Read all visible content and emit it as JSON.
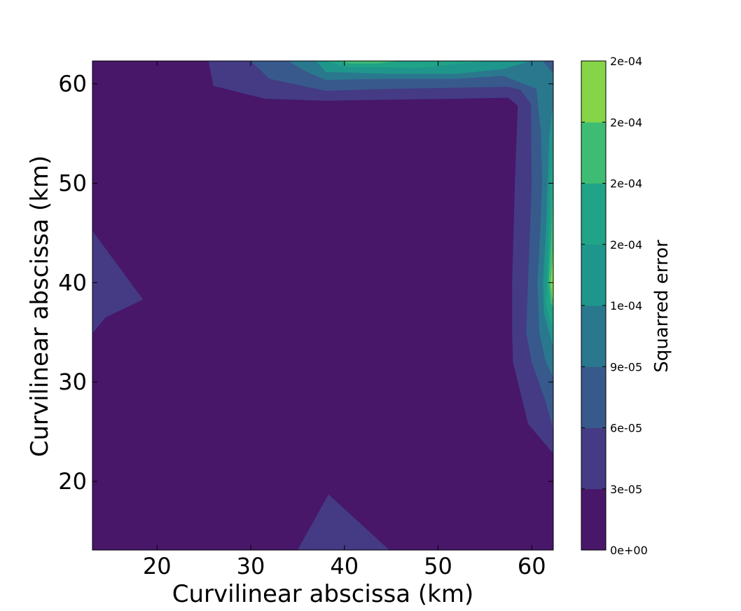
{
  "chart_data": {
    "type": "contour",
    "title": "",
    "xlabel": "Curvilinear abscissa (km)",
    "ylabel": "Curvilinear abscissa (km)",
    "xlim": [
      13.1,
      62.3
    ],
    "ylim": [
      13.1,
      62.3
    ],
    "xticks": [
      20,
      30,
      40,
      50,
      60
    ],
    "yticks": [
      20,
      30,
      40,
      50,
      60
    ],
    "colorbar": {
      "label": "Squarred error",
      "tick_labels": [
        "0e+00",
        "3e-05",
        "6e-05",
        "9e-05",
        "1e-04",
        "2e-04",
        "2e-04",
        "2e-04",
        "2e-04"
      ],
      "colors": [
        "#481769",
        "#443b84",
        "#38598c",
        "#2a788e",
        "#1f968b",
        "#20a386",
        "#3fbc73",
        "#86d549",
        "#dae319"
      ]
    },
    "grid": false,
    "regions": [
      {
        "level": 1,
        "points": [
          [
            25.5,
            62.3
          ],
          [
            26,
            59.8
          ],
          [
            31.5,
            58.5
          ],
          [
            38,
            58.3
          ],
          [
            45,
            58.4
          ],
          [
            52,
            58.5
          ],
          [
            57.5,
            58.6
          ],
          [
            58.5,
            57.8
          ],
          [
            58.2,
            50
          ],
          [
            57.9,
            40
          ],
          [
            57.9,
            35
          ],
          [
            58,
            32
          ],
          [
            59.6,
            25.8
          ],
          [
            62.3,
            22.8
          ],
          [
            62.3,
            62.3
          ]
        ]
      },
      {
        "level": 1,
        "points": [
          [
            13.1,
            45.2
          ],
          [
            18.5,
            38.3
          ],
          [
            14.5,
            36.5
          ],
          [
            13.1,
            34.9
          ]
        ]
      },
      {
        "level": 1,
        "points": [
          [
            35,
            13.1
          ],
          [
            38.3,
            18.7
          ],
          [
            44.8,
            13.1
          ]
        ]
      },
      {
        "level": 2,
        "points": [
          [
            30,
            62.3
          ],
          [
            32,
            60.5
          ],
          [
            38,
            59.3
          ],
          [
            45,
            59.5
          ],
          [
            52,
            59.6
          ],
          [
            57.5,
            59.7
          ],
          [
            58.8,
            59.4
          ],
          [
            59.9,
            58
          ],
          [
            60,
            50
          ],
          [
            59.6,
            40
          ],
          [
            59.4,
            35
          ],
          [
            60,
            32
          ],
          [
            61.5,
            28
          ],
          [
            62.3,
            25.2
          ],
          [
            62.3,
            62.3
          ]
        ]
      },
      {
        "level": 3,
        "points": [
          [
            34,
            62.3
          ],
          [
            36,
            61.2
          ],
          [
            38,
            60.4
          ],
          [
            45,
            60.5
          ],
          [
            52,
            60.5
          ],
          [
            57,
            60.8
          ],
          [
            60.5,
            59.5
          ],
          [
            61,
            55
          ],
          [
            61.1,
            50
          ],
          [
            60.9,
            45
          ],
          [
            60.6,
            40
          ],
          [
            60.8,
            35
          ],
          [
            61.5,
            32
          ],
          [
            62.3,
            30.5
          ],
          [
            62.3,
            62.3
          ]
        ]
      },
      {
        "level": 4,
        "points": [
          [
            37,
            62.3
          ],
          [
            38,
            61.2
          ],
          [
            45,
            61
          ],
          [
            52,
            61
          ],
          [
            57,
            61.5
          ],
          [
            59.9,
            62.3
          ],
          [
            62.3,
            62.3
          ],
          [
            62.3,
            58
          ],
          [
            61.9,
            55
          ],
          [
            61.7,
            50
          ],
          [
            61.5,
            45
          ],
          [
            61.2,
            40
          ],
          [
            61.3,
            37
          ],
          [
            62.3,
            33.5
          ],
          [
            62.3,
            62.3
          ]
        ]
      },
      {
        "level": 5,
        "points": [
          [
            38,
            62.3
          ],
          [
            40,
            61.7
          ],
          [
            48,
            61.6
          ],
          [
            55,
            62.3
          ]
        ]
      },
      {
        "level": 5,
        "points": [
          [
            62.3,
            54.5
          ],
          [
            62,
            50
          ],
          [
            61.8,
            44
          ],
          [
            61.6,
            40
          ],
          [
            61.5,
            38
          ],
          [
            62,
            36
          ],
          [
            62.3,
            35.5
          ]
        ]
      },
      {
        "level": 6,
        "points": [
          [
            39.5,
            62.3
          ],
          [
            40.5,
            62.05
          ],
          [
            43.5,
            62.05
          ],
          [
            46,
            62.3
          ]
        ]
      },
      {
        "level": 6,
        "points": [
          [
            62.3,
            50.5
          ],
          [
            62.1,
            45
          ],
          [
            61.9,
            42
          ],
          [
            61.8,
            40
          ],
          [
            62,
            38
          ],
          [
            62.3,
            37.5
          ]
        ]
      },
      {
        "level": 7,
        "points": [
          [
            62.3,
            44.2
          ],
          [
            62.2,
            42
          ],
          [
            62,
            40
          ],
          [
            62.2,
            38.5
          ],
          [
            62.3,
            38.2
          ]
        ]
      },
      {
        "level": 2,
        "points": [
          [
            61.2,
            62.3
          ],
          [
            62.3,
            62.3
          ],
          [
            62.3,
            61
          ]
        ]
      }
    ]
  }
}
